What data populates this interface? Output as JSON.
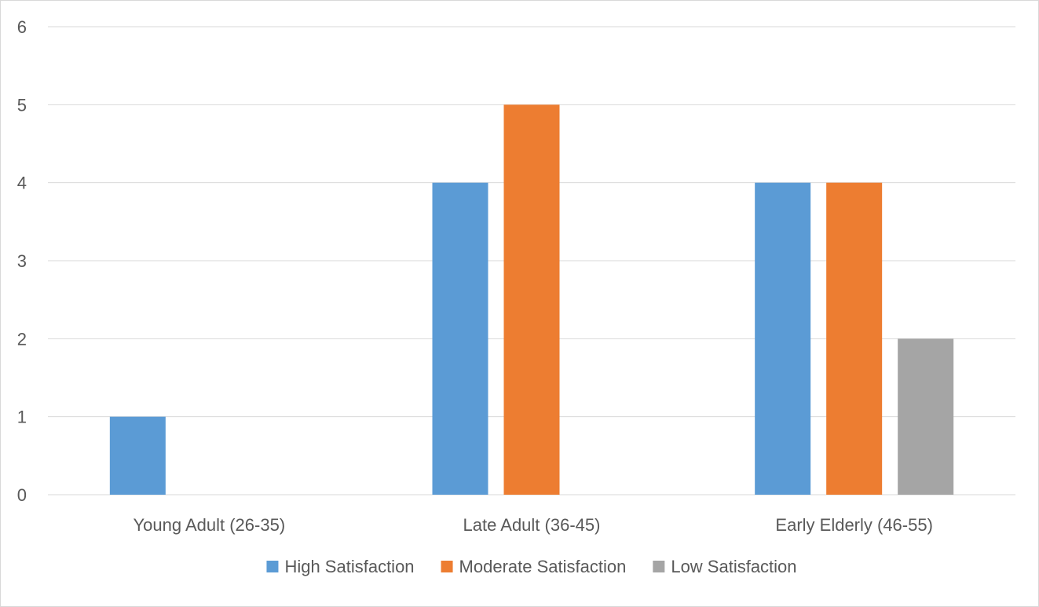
{
  "chart_data": {
    "type": "bar",
    "title": "",
    "xlabel": "",
    "ylabel": "",
    "ylim": [
      0,
      6
    ],
    "yticks": [
      0,
      1,
      2,
      3,
      4,
      5,
      6
    ],
    "grid": true,
    "legend_position": "bottom",
    "categories": [
      "Young Adult (26-35)",
      "Late Adult (36-45)",
      "Early Elderly (46-55)"
    ],
    "series": [
      {
        "name": "High Satisfaction",
        "values": [
          1,
          4,
          4
        ],
        "color": "#5b9bd5"
      },
      {
        "name": "Moderate Satisfaction",
        "values": [
          0,
          5,
          4
        ],
        "color": "#ed7d31"
      },
      {
        "name": "Low Satisfaction",
        "values": [
          0,
          0,
          2
        ],
        "color": "#a5a5a5"
      }
    ]
  }
}
